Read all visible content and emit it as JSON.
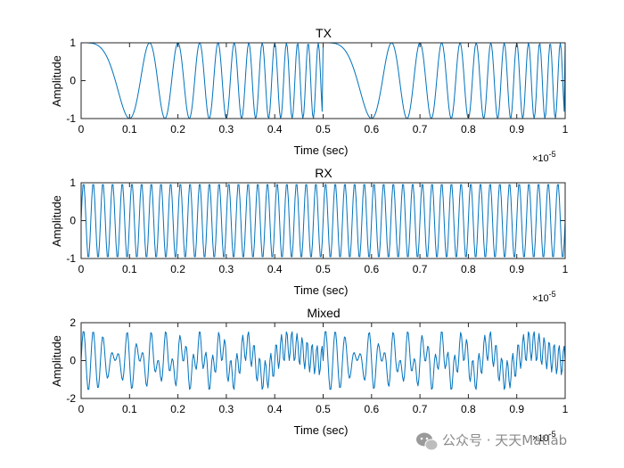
{
  "chart_data": [
    {
      "type": "line",
      "title": "TX",
      "xlabel": "Time (sec)",
      "ylabel": "Amplitude",
      "xlim": [
        0,
        1e-05
      ],
      "ylim": [
        -1,
        1
      ],
      "x_exponent_label": "×10",
      "x_exponent_power": "-5",
      "xticks": [
        0,
        0.1,
        0.2,
        0.3,
        0.4,
        0.5,
        0.6,
        0.7,
        0.8,
        0.9,
        1
      ],
      "yticks": [
        -1,
        0,
        1
      ],
      "xtick_labels": [
        "0",
        "0.1",
        "0.2",
        "0.3",
        "0.4",
        "0.5",
        "0.6",
        "0.7",
        "0.8",
        "0.9",
        "1"
      ],
      "ytick_labels": [
        "-1",
        "0",
        "1"
      ],
      "grid": false,
      "series": [
        {
          "color": "#0072BD",
          "signal": "chirp",
          "f0_hz": 0,
          "chirp_rate_hz_per_s": 1000000000000.0,
          "chirp_period_s": 5e-06,
          "sample_step_s": 2e-08
        }
      ]
    },
    {
      "type": "line",
      "title": "RX",
      "xlabel": "Time (sec)",
      "ylabel": "Amplitude",
      "xlim": [
        0,
        1e-05
      ],
      "ylim": [
        -1,
        1
      ],
      "x_exponent_label": "×10",
      "x_exponent_power": "-5",
      "xticks": [
        0,
        0.1,
        0.2,
        0.3,
        0.4,
        0.5,
        0.6,
        0.7,
        0.8,
        0.9,
        1
      ],
      "yticks": [
        -1,
        0,
        1
      ],
      "xtick_labels": [
        "0",
        "0.1",
        "0.2",
        "0.3",
        "0.4",
        "0.5",
        "0.6",
        "0.7",
        "0.8",
        "0.9",
        "1"
      ],
      "ytick_labels": [
        "-1",
        "0",
        "1"
      ],
      "grid": false,
      "series": [
        {
          "color": "#0072BD",
          "signal": "sine",
          "frequency_hz": 5000000.0,
          "sample_step_s": 2e-08
        }
      ]
    },
    {
      "type": "line",
      "title": "Mixed",
      "xlabel": "Time (sec)",
      "ylabel": "Amplitude",
      "xlim": [
        0,
        1e-05
      ],
      "ylim": [
        -2,
        2
      ],
      "x_exponent_label": "×10",
      "x_exponent_power": "-5",
      "xticks": [
        0,
        0.1,
        0.2,
        0.3,
        0.4,
        0.5,
        0.6,
        0.7,
        0.8,
        0.9,
        1
      ],
      "yticks": [
        -2,
        0,
        2
      ],
      "xtick_labels": [
        "0",
        "0.1",
        "0.2",
        "0.3",
        "0.4",
        "0.5",
        "0.6",
        "0.7",
        "0.8",
        "0.9",
        "1"
      ],
      "ytick_labels": [
        "-2",
        "0",
        "2"
      ],
      "grid": false,
      "series": [
        {
          "color": "#0072BD",
          "signal": "product-of-tx-rx",
          "sample_step_s": 2e-08,
          "display_gain": 1.6
        }
      ]
    }
  ],
  "watermark": {
    "text": "公众号 · 天天Matlab",
    "icon": "wechat-logo-icon"
  }
}
